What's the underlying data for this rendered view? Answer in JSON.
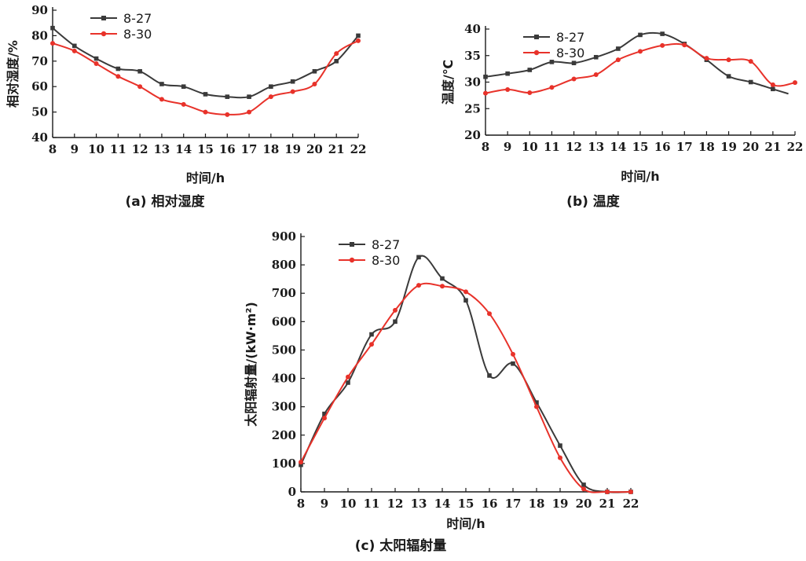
{
  "chart_data": [
    {
      "id": "a",
      "type": "line",
      "caption": "(a) 相对湿度",
      "xlabel": "时间/h",
      "ylabel": "相对湿度/%",
      "x": [
        8,
        9,
        10,
        11,
        12,
        13,
        14,
        15,
        16,
        17,
        18,
        19,
        20,
        21,
        22
      ],
      "xlim": [
        8,
        22
      ],
      "ylim": [
        40,
        90
      ],
      "yticks": [
        40,
        50,
        60,
        70,
        80,
        90
      ],
      "legend_position": "top-left",
      "series": [
        {
          "name": "8-27",
          "color": "#3a3a3a",
          "marker": "square",
          "values": [
            83,
            76,
            71,
            67,
            66,
            61,
            60,
            57,
            56,
            56,
            60,
            62,
            66,
            70,
            80
          ]
        },
        {
          "name": "8-30",
          "color": "#e8322a",
          "marker": "circle",
          "values": [
            77,
            74,
            69,
            64,
            60,
            55,
            53,
            50,
            49,
            50,
            56,
            58,
            61,
            73,
            78
          ]
        }
      ]
    },
    {
      "id": "b",
      "type": "line",
      "caption": "(b) 温度",
      "xlabel": "时间/h",
      "ylabel": "温度/℃",
      "x": [
        8,
        9,
        10,
        11,
        12,
        13,
        14,
        15,
        16,
        17,
        18,
        19,
        20,
        21,
        22
      ],
      "xlim": [
        8,
        22
      ],
      "ylim": [
        20,
        40
      ],
      "yticks": [
        20,
        25,
        30,
        35,
        40
      ],
      "legend_position": "top-left",
      "series": [
        {
          "name": "8-27",
          "color": "#3a3a3a",
          "marker": "square",
          "values": [
            31,
            31.6,
            32.3,
            33.8,
            33.6,
            34.7,
            36.3,
            38.9,
            39.1,
            37.2,
            34.2,
            31.1,
            30,
            28.7,
            null
          ],
          "end_point": [
            21.7,
            27.8
          ]
        },
        {
          "name": "8-30",
          "color": "#e8322a",
          "marker": "circle",
          "values": [
            27.9,
            28.6,
            28,
            29,
            30.6,
            31.4,
            34.2,
            35.8,
            36.9,
            37,
            34.5,
            34.2,
            33.9,
            29.5,
            29.9
          ]
        }
      ]
    },
    {
      "id": "c",
      "type": "line",
      "caption": "(c) 太阳辐射量",
      "xlabel": "时间/h",
      "ylabel": "太阳辐射量/(kW·m²)",
      "x": [
        8,
        9,
        10,
        11,
        12,
        13,
        14,
        15,
        16,
        17,
        18,
        19,
        20,
        21,
        22
      ],
      "xlim": [
        8,
        22
      ],
      "ylim": [
        0,
        900
      ],
      "yticks": [
        0,
        100,
        200,
        300,
        400,
        500,
        600,
        700,
        800,
        900
      ],
      "legend_position": "top-left",
      "series": [
        {
          "name": "8-27",
          "color": "#3a3a3a",
          "marker": "square",
          "values": [
            95,
            275,
            385,
            555,
            600,
            827,
            752,
            675,
            410,
            452,
            315,
            163,
            25,
            0,
            0
          ]
        },
        {
          "name": "8-30",
          "color": "#e8322a",
          "marker": "circle",
          "values": [
            105,
            260,
            405,
            520,
            640,
            728,
            725,
            705,
            628,
            485,
            300,
            120,
            10,
            0,
            0
          ]
        }
      ]
    }
  ]
}
